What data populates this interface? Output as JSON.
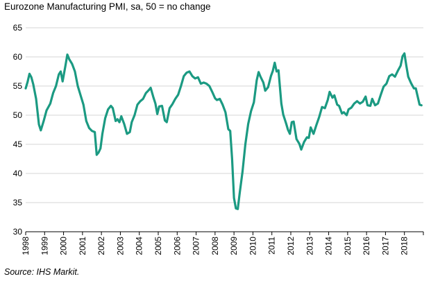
{
  "chart_data": {
    "type": "line",
    "title": "Eurozone Manufacturing PMI, sa, 50 = no change",
    "source": "Source: IHS Markit.",
    "xlabel": "",
    "ylabel": "",
    "ylim": [
      30,
      65
    ],
    "yticks": [
      30,
      35,
      40,
      45,
      50,
      55,
      60,
      65
    ],
    "xlim": [
      1998,
      2019
    ],
    "xticks": [
      "1998",
      "1999",
      "2000",
      "2001",
      "2002",
      "2003",
      "2004",
      "2005",
      "2006",
      "2007",
      "2008",
      "2009",
      "2010",
      "2011",
      "2012",
      "2013",
      "2014",
      "2015",
      "2016",
      "2017",
      "2018"
    ],
    "grid": "horizontal",
    "colors": {
      "series": "#1b9a82",
      "grid": "#d4d4d4",
      "axis": "#000000"
    },
    "series": [
      {
        "name": "Eurozone Manufacturing PMI",
        "points": [
          [
            1998.0,
            54.6
          ],
          [
            1998.1,
            55.7
          ],
          [
            1998.2,
            57.1
          ],
          [
            1998.3,
            56.5
          ],
          [
            1998.4,
            55.3
          ],
          [
            1998.55,
            52.8
          ],
          [
            1998.7,
            48.4
          ],
          [
            1998.8,
            47.4
          ],
          [
            1998.95,
            49.0
          ],
          [
            1999.1,
            50.8
          ],
          [
            1999.3,
            52.0
          ],
          [
            1999.45,
            53.8
          ],
          [
            1999.6,
            55.0
          ],
          [
            1999.75,
            57.0
          ],
          [
            1999.85,
            57.5
          ],
          [
            1999.95,
            55.8
          ],
          [
            2000.1,
            58.5
          ],
          [
            2000.2,
            60.4
          ],
          [
            2000.3,
            59.6
          ],
          [
            2000.45,
            58.8
          ],
          [
            2000.6,
            57.5
          ],
          [
            2000.75,
            55.0
          ],
          [
            2000.9,
            53.4
          ],
          [
            2001.05,
            51.8
          ],
          [
            2001.2,
            49.0
          ],
          [
            2001.35,
            47.8
          ],
          [
            2001.5,
            47.3
          ],
          [
            2001.65,
            47.1
          ],
          [
            2001.75,
            43.2
          ],
          [
            2001.85,
            43.6
          ],
          [
            2001.95,
            44.3
          ],
          [
            2002.05,
            46.8
          ],
          [
            2002.2,
            49.5
          ],
          [
            2002.35,
            51.0
          ],
          [
            2002.5,
            51.6
          ],
          [
            2002.6,
            51.2
          ],
          [
            2002.75,
            49.0
          ],
          [
            2002.85,
            49.3
          ],
          [
            2002.95,
            48.8
          ],
          [
            2003.05,
            49.8
          ],
          [
            2003.2,
            48.5
          ],
          [
            2003.35,
            46.8
          ],
          [
            2003.5,
            47.1
          ],
          [
            2003.6,
            48.8
          ],
          [
            2003.75,
            50.0
          ],
          [
            2003.9,
            51.8
          ],
          [
            2004.05,
            52.4
          ],
          [
            2004.2,
            52.8
          ],
          [
            2004.35,
            53.8
          ],
          [
            2004.5,
            54.3
          ],
          [
            2004.6,
            54.7
          ],
          [
            2004.75,
            53.0
          ],
          [
            2004.85,
            52.0
          ],
          [
            2004.95,
            50.2
          ],
          [
            2005.05,
            51.5
          ],
          [
            2005.2,
            51.6
          ],
          [
            2005.35,
            49.1
          ],
          [
            2005.45,
            48.8
          ],
          [
            2005.6,
            51.2
          ],
          [
            2005.75,
            51.9
          ],
          [
            2005.9,
            52.8
          ],
          [
            2006.05,
            53.5
          ],
          [
            2006.2,
            55.0
          ],
          [
            2006.35,
            56.7
          ],
          [
            2006.5,
            57.3
          ],
          [
            2006.65,
            57.5
          ],
          [
            2006.8,
            56.7
          ],
          [
            2006.95,
            56.3
          ],
          [
            2007.1,
            56.5
          ],
          [
            2007.25,
            55.4
          ],
          [
            2007.4,
            55.6
          ],
          [
            2007.55,
            55.4
          ],
          [
            2007.7,
            55.0
          ],
          [
            2007.85,
            54.0
          ],
          [
            2008.0,
            52.9
          ],
          [
            2008.1,
            52.6
          ],
          [
            2008.25,
            52.8
          ],
          [
            2008.4,
            51.8
          ],
          [
            2008.55,
            50.5
          ],
          [
            2008.7,
            47.6
          ],
          [
            2008.8,
            47.3
          ],
          [
            2008.9,
            42.5
          ],
          [
            2009.0,
            35.8
          ],
          [
            2009.1,
            34.0
          ],
          [
            2009.2,
            33.9
          ],
          [
            2009.3,
            36.6
          ],
          [
            2009.45,
            40.3
          ],
          [
            2009.6,
            45.0
          ],
          [
            2009.75,
            48.5
          ],
          [
            2009.9,
            50.7
          ],
          [
            2010.05,
            52.2
          ],
          [
            2010.2,
            56.0
          ],
          [
            2010.3,
            57.4
          ],
          [
            2010.4,
            56.6
          ],
          [
            2010.55,
            55.6
          ],
          [
            2010.65,
            54.2
          ],
          [
            2010.8,
            54.8
          ],
          [
            2010.95,
            56.7
          ],
          [
            2011.05,
            57.6
          ],
          [
            2011.15,
            59.0
          ],
          [
            2011.25,
            57.5
          ],
          [
            2011.35,
            57.7
          ],
          [
            2011.5,
            52.0
          ],
          [
            2011.6,
            50.1
          ],
          [
            2011.75,
            48.6
          ],
          [
            2011.85,
            47.5
          ],
          [
            2011.95,
            46.8
          ],
          [
            2012.05,
            48.8
          ],
          [
            2012.15,
            48.9
          ],
          [
            2012.3,
            45.9
          ],
          [
            2012.45,
            45.1
          ],
          [
            2012.55,
            44.1
          ],
          [
            2012.7,
            45.4
          ],
          [
            2012.85,
            46.2
          ],
          [
            2012.95,
            46.1
          ],
          [
            2013.05,
            47.9
          ],
          [
            2013.2,
            46.8
          ],
          [
            2013.35,
            48.3
          ],
          [
            2013.5,
            49.7
          ],
          [
            2013.65,
            51.4
          ],
          [
            2013.8,
            51.2
          ],
          [
            2013.95,
            52.6
          ],
          [
            2014.05,
            54.0
          ],
          [
            2014.2,
            53.0
          ],
          [
            2014.3,
            53.4
          ],
          [
            2014.45,
            51.8
          ],
          [
            2014.55,
            51.6
          ],
          [
            2014.7,
            50.3
          ],
          [
            2014.8,
            50.5
          ],
          [
            2014.95,
            50.0
          ],
          [
            2015.05,
            51.0
          ],
          [
            2015.2,
            51.3
          ],
          [
            2015.35,
            52.0
          ],
          [
            2015.5,
            52.4
          ],
          [
            2015.65,
            52.0
          ],
          [
            2015.8,
            52.3
          ],
          [
            2015.95,
            53.2
          ],
          [
            2016.05,
            51.7
          ],
          [
            2016.2,
            51.6
          ],
          [
            2016.3,
            52.8
          ],
          [
            2016.45,
            51.7
          ],
          [
            2016.6,
            52.0
          ],
          [
            2016.75,
            53.5
          ],
          [
            2016.9,
            54.9
          ],
          [
            2017.05,
            55.4
          ],
          [
            2017.2,
            56.7
          ],
          [
            2017.35,
            57.0
          ],
          [
            2017.5,
            56.6
          ],
          [
            2017.65,
            57.6
          ],
          [
            2017.8,
            58.5
          ],
          [
            2017.9,
            60.1
          ],
          [
            2018.0,
            60.6
          ],
          [
            2018.1,
            58.5
          ],
          [
            2018.2,
            56.6
          ],
          [
            2018.35,
            55.5
          ],
          [
            2018.5,
            54.6
          ],
          [
            2018.6,
            54.6
          ],
          [
            2018.7,
            53.2
          ],
          [
            2018.8,
            51.8
          ],
          [
            2018.9,
            51.7
          ]
        ]
      }
    ]
  }
}
